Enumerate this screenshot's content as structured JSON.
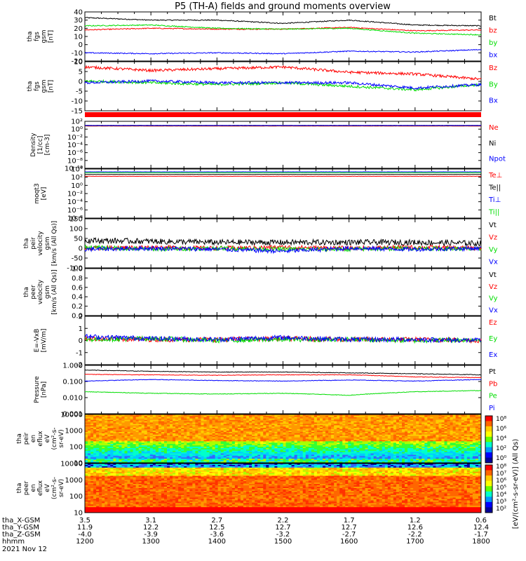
{
  "title": "P5 (TH-A) fields and ground moments overview",
  "date_label": "2021 Nov 12",
  "colors": {
    "black": "#000000",
    "red": "#ff0000",
    "green": "#00dd00",
    "blue": "#0000ff"
  },
  "panels": [
    {
      "id": "fgs_gsm",
      "ylabel": [
        "tha",
        "fgs",
        "gsm",
        "[nT]"
      ],
      "ticks": [
        "40",
        "30",
        "20",
        "10",
        "0",
        "-10",
        "-20"
      ],
      "legend": [
        {
          "text": "Bt",
          "color": "#000000"
        },
        {
          "text": "bz",
          "color": "#ff0000"
        },
        {
          "text": "by",
          "color": "#00dd00"
        },
        {
          "text": "bx",
          "color": "#0000ff"
        }
      ]
    },
    {
      "id": "fgs_gse",
      "ylabel": [
        "tha",
        "fgs",
        "gsm",
        "[nT]"
      ],
      "ticks": [
        "10",
        "5",
        "0",
        "-5",
        "-10",
        "-15"
      ],
      "legend": [
        {
          "text": "Bz",
          "color": "#ff0000"
        },
        {
          "text": "By",
          "color": "#00dd00"
        },
        {
          "text": "Bx",
          "color": "#0000ff"
        }
      ]
    },
    {
      "id": "density",
      "ylabel": [
        "Density",
        "[1/cc]",
        "[cm-3]"
      ],
      "ticks": [
        "10²",
        "10⁰",
        "10⁻²",
        "10⁻⁴",
        "10⁻⁶",
        "10⁻⁸",
        "10⁻¹⁰"
      ],
      "legend": [
        {
          "text": "Ne",
          "color": "#ff0000"
        },
        {
          "text": "Ni",
          "color": "#000000"
        },
        {
          "text": "Npot",
          "color": "#0000ff"
        }
      ]
    },
    {
      "id": "temp",
      "ylabel": [
        "moqt3",
        "[eV]"
      ],
      "ticks": [
        "10⁴",
        "10²",
        "10⁰",
        "10⁻²",
        "10⁻⁴",
        "10⁻⁶",
        "10⁻⁸"
      ],
      "legend": [
        {
          "text": "Te⊥",
          "color": "#ff0000"
        },
        {
          "text": "Te||",
          "color": "#000000"
        },
        {
          "text": "Ti⊥",
          "color": "#0000ff"
        },
        {
          "text": "Ti||",
          "color": "#00dd00"
        }
      ]
    },
    {
      "id": "peir_vel",
      "ylabel": [
        "tha",
        "peir",
        "velocity",
        "gsm",
        "[km/s (All Qs)]"
      ],
      "ticks": [
        "150",
        "100",
        "50",
        "0",
        "-50",
        "-100"
      ],
      "legend": [
        {
          "text": "Vt",
          "color": "#000000"
        },
        {
          "text": "Vz",
          "color": "#ff0000"
        },
        {
          "text": "Vy",
          "color": "#00dd00"
        },
        {
          "text": "Vx",
          "color": "#0000ff"
        }
      ]
    },
    {
      "id": "peer_vel",
      "ylabel": [
        "tha",
        "peer",
        "velocity",
        "gsm",
        "[km/s (All Qs)]"
      ],
      "ticks": [
        "1.0",
        "0.8",
        "0.6",
        "0.4",
        "0.2",
        "0.0"
      ],
      "legend": [
        {
          "text": "Vt",
          "color": "#000000"
        },
        {
          "text": "Vz",
          "color": "#ff0000"
        },
        {
          "text": "Vy",
          "color": "#00dd00"
        },
        {
          "text": "Vx",
          "color": "#0000ff"
        }
      ]
    },
    {
      "id": "efield",
      "ylabel": [
        "E=-VxB",
        "[mV/m]"
      ],
      "ticks": [
        "2",
        "1",
        "0",
        "-1",
        "-2"
      ],
      "legend": [
        {
          "text": "Ez",
          "color": "#ff0000"
        },
        {
          "text": "Ey",
          "color": "#00dd00"
        },
        {
          "text": "Ex",
          "color": "#0000ff"
        }
      ]
    },
    {
      "id": "pressure",
      "ylabel": [
        "Pressure",
        "[nPa]"
      ],
      "ticks": [
        "1.000",
        "0.100",
        "0.010",
        "0.001"
      ],
      "legend": [
        {
          "text": "Pt",
          "color": "#000000"
        },
        {
          "text": "Pb",
          "color": "#ff0000"
        },
        {
          "text": "Pe",
          "color": "#00dd00"
        },
        {
          "text": "Pi",
          "color": "#0000ff"
        }
      ]
    },
    {
      "id": "peir_flux",
      "ylabel": [
        "tha",
        "peir",
        "en",
        "eflux",
        "eV",
        "(cm²-s-",
        "sr-eV)"
      ],
      "ticks": [
        "10000",
        "1000",
        "100",
        "10"
      ],
      "legend": []
    },
    {
      "id": "peer_flux",
      "ylabel": [
        "tha",
        "peer",
        "en",
        "eflux",
        "eV",
        "(cm²-s-",
        "sr-eV)"
      ],
      "ticks": [
        "10000",
        "1000",
        "100",
        "10"
      ],
      "legend": []
    }
  ],
  "colorbar": {
    "label": "[eV/(cm²-s-sr-eV)] (All Qs)",
    "ticks_top": [
      "10⁸",
      "10⁶",
      "10⁴",
      "10²",
      "10⁰"
    ],
    "ticks_bottom": [
      "10⁸",
      "10⁷",
      "10⁶",
      "10⁵",
      "10⁴",
      "10³",
      "10²"
    ]
  },
  "xaxis": {
    "row_labels": [
      "tha_X-GSM",
      "tha_Y-GSM",
      "tha_Z-GSM",
      "hhmm"
    ],
    "columns": [
      {
        "x": "3.5",
        "y": "11.9",
        "z": "-4.0",
        "hhmm": "1200"
      },
      {
        "x": "3.1",
        "y": "12.2",
        "z": "-3.9",
        "hhmm": "1300"
      },
      {
        "x": "2.7",
        "y": "12.5",
        "z": "-3.6",
        "hhmm": "1400"
      },
      {
        "x": "2.2",
        "y": "12.7",
        "z": "-3.2",
        "hhmm": "1500"
      },
      {
        "x": "1.7",
        "y": "12.7",
        "z": "-2.7",
        "hhmm": "1600"
      },
      {
        "x": "1.2",
        "y": "12.6",
        "z": "-2.2",
        "hhmm": "1700"
      },
      {
        "x": "0.6",
        "y": "12.4",
        "z": "-1.7",
        "hhmm": "1800"
      }
    ]
  },
  "chart_data": [
    {
      "type": "line",
      "title": "P5 (TH-A) fields and ground moments overview",
      "ylabel": "tha fgs gsm [nT]",
      "ylim": [
        -20,
        40
      ],
      "x": [
        "1200",
        "1300",
        "1400",
        "1500",
        "1600",
        "1700",
        "1800"
      ],
      "series": [
        {
          "name": "Bt",
          "values": [
            33,
            30,
            30,
            26,
            30,
            24,
            23
          ]
        },
        {
          "name": "bz",
          "values": [
            18,
            20,
            19,
            19,
            21,
            17,
            18
          ]
        },
        {
          "name": "by",
          "values": [
            23,
            24,
            20,
            19,
            20,
            14,
            12
          ]
        },
        {
          "name": "bx",
          "values": [
            -10,
            -11,
            -10,
            -11,
            -8,
            -9,
            -6
          ]
        }
      ]
    },
    {
      "type": "line",
      "ylabel": "tha fgs gsm [nT]",
      "ylim": [
        -18,
        10
      ],
      "x": [
        "1200",
        "1300",
        "1400",
        "1500",
        "1600",
        "1700",
        "1800"
      ],
      "series": [
        {
          "name": "Bz",
          "values": [
            7,
            5,
            6,
            7,
            4,
            3,
            0
          ]
        },
        {
          "name": "By",
          "values": [
            -1,
            -2,
            -3,
            -2,
            -4,
            -6,
            -3
          ]
        },
        {
          "name": "Bx",
          "values": [
            -2,
            -1,
            -2,
            -2,
            -2,
            -5,
            -3
          ]
        }
      ]
    },
    {
      "type": "line",
      "ylabel": "Density [1/cc] [cm-3]",
      "yscale": "log",
      "ylim": [
        1e-11,
        1000
      ],
      "x": [
        "1200",
        "1300",
        "1400",
        "1500",
        "1600",
        "1700",
        "1800"
      ],
      "series": [
        {
          "name": "Ne",
          "values": [
            40,
            40,
            40,
            40,
            40,
            40,
            40
          ]
        },
        {
          "name": "Ni",
          "values": [
            50,
            50,
            50,
            50,
            50,
            50,
            50
          ]
        },
        {
          "name": "Npot",
          "values": [
            60,
            60,
            60,
            60,
            60,
            60,
            60
          ]
        }
      ]
    },
    {
      "type": "line",
      "ylabel": "moqt3 [eV]",
      "yscale": "log",
      "ylim": [
        1e-09,
        30000
      ],
      "x": [
        "1200",
        "1300",
        "1400",
        "1500",
        "1600",
        "1700",
        "1800"
      ],
      "series": [
        {
          "name": "Te⊥",
          "values": [
            300,
            300,
            300,
            300,
            300,
            300,
            300
          ]
        },
        {
          "name": "Te||",
          "values": [
            1000,
            1000,
            1000,
            1000,
            1000,
            1000,
            1000
          ]
        },
        {
          "name": "Ti⊥",
          "values": [
            5000,
            5000,
            5000,
            5000,
            5000,
            5000,
            5000
          ]
        },
        {
          "name": "Ti||",
          "values": [
            3000,
            3000,
            3000,
            3000,
            3000,
            3000,
            3000
          ]
        }
      ]
    },
    {
      "type": "line",
      "ylabel": "tha peir velocity gsm [km/s (All Qs)]",
      "ylim": [
        -100,
        150
      ],
      "x": [
        "1200",
        "1300",
        "1400",
        "1500",
        "1600",
        "1700",
        "1800"
      ],
      "series": [
        {
          "name": "Vt",
          "values": [
            40,
            35,
            30,
            30,
            30,
            30,
            25
          ]
        },
        {
          "name": "Vz",
          "values": [
            0,
            5,
            0,
            5,
            0,
            5,
            0
          ]
        },
        {
          "name": "Vy",
          "values": [
            5,
            -5,
            0,
            -5,
            -5,
            0,
            -5
          ]
        },
        {
          "name": "Vx",
          "values": [
            -5,
            0,
            -5,
            -15,
            0,
            -5,
            0
          ]
        }
      ]
    },
    {
      "type": "line",
      "ylabel": "tha peer velocity gsm [km/s (All Qs)]",
      "ylim": [
        0,
        1
      ],
      "x": [],
      "series": []
    },
    {
      "type": "line",
      "ylabel": "E=-VxB [mV/m]",
      "ylim": [
        -2.5,
        2.5
      ],
      "x": [
        "1200",
        "1300",
        "1400",
        "1500",
        "1600",
        "1700",
        "1800"
      ],
      "series": [
        {
          "name": "Ez",
          "values": [
            0.2,
            0.1,
            0.1,
            0.2,
            0.1,
            0.1,
            0
          ]
        },
        {
          "name": "Ey",
          "values": [
            0.1,
            0.2,
            0,
            0.1,
            0.1,
            0,
            0.1
          ]
        },
        {
          "name": "Ex",
          "values": [
            0.4,
            0.2,
            0.1,
            0.3,
            0.1,
            0.1,
            0
          ]
        }
      ]
    },
    {
      "type": "line",
      "ylabel": "Pressure [nPa]",
      "yscale": "log",
      "ylim": [
        0.001,
        1.2
      ],
      "x": [
        "1200",
        "1300",
        "1400",
        "1500",
        "1600",
        "1700",
        "1800"
      ],
      "series": [
        {
          "name": "Pt",
          "values": [
            0.6,
            0.5,
            0.45,
            0.45,
            0.4,
            0.35,
            0.3
          ]
        },
        {
          "name": "Pb",
          "values": [
            0.32,
            0.3,
            0.28,
            0.3,
            0.3,
            0.22,
            0.2
          ]
        },
        {
          "name": "Pe",
          "values": [
            0.025,
            0.02,
            0.018,
            0.02,
            0.015,
            0.025,
            0.03
          ]
        },
        {
          "name": "Pi",
          "values": [
            0.12,
            0.15,
            0.13,
            0.12,
            0.14,
            0.12,
            0.15
          ]
        }
      ]
    },
    {
      "type": "heatmap",
      "ylabel": "tha peir en eflux eV (cm²-s-sr-eV)",
      "yscale": "log",
      "ylim": [
        5,
        30000
      ],
      "colorbar": [
        1,
        100000000
      ]
    },
    {
      "type": "heatmap",
      "ylabel": "tha peer en eflux eV (cm²-s-sr-eV)",
      "yscale": "log",
      "ylim": [
        5,
        30000
      ],
      "colorbar": [
        100,
        100000000
      ]
    }
  ]
}
